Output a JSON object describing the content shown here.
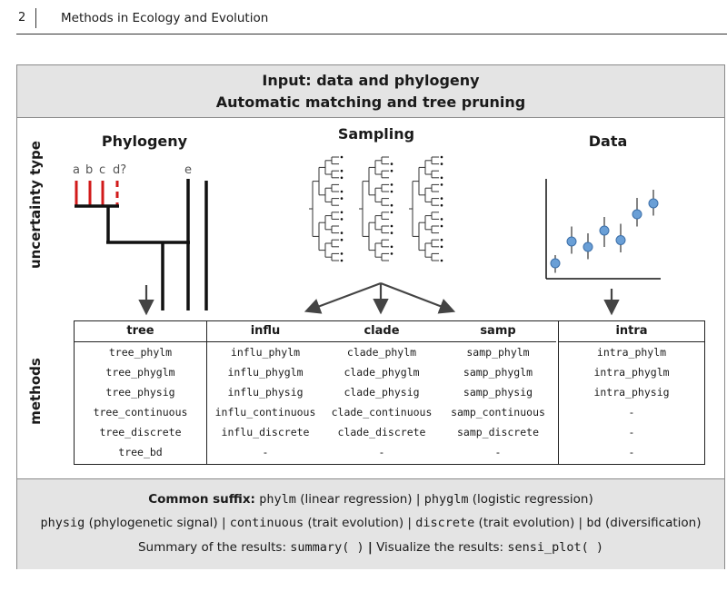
{
  "page_header": {
    "page_number": "2",
    "journal": "Methods in Ecology and Evolution"
  },
  "top_band": {
    "line1": "Input: data and phylogeny",
    "line2": "Automatic matching and tree pruning"
  },
  "side_labels": {
    "uncertainty": "uncertainty type",
    "methods": "methods"
  },
  "panels": {
    "phylogeny": {
      "title": "Phylogeny",
      "tip_labels": [
        "a",
        "b",
        "c",
        "d?",
        "e"
      ]
    },
    "sampling": {
      "title": "Sampling"
    },
    "data": {
      "title": "Data"
    }
  },
  "table": {
    "columns": [
      {
        "header": "tree",
        "cells": [
          "tree_phylm",
          "tree_phyglm",
          "tree_physig",
          "tree_continuous",
          "tree_discrete",
          "tree_bd"
        ]
      },
      {
        "header": "influ",
        "cells": [
          "influ_phylm",
          "influ_phyglm",
          "influ_physig",
          "influ_continuous",
          "influ_discrete",
          "-"
        ]
      },
      {
        "header": "clade",
        "cells": [
          "clade_phylm",
          "clade_phyglm",
          "clade_physig",
          "clade_continuous",
          "clade_discrete",
          "-"
        ]
      },
      {
        "header": "samp",
        "cells": [
          "samp_phylm",
          "samp_phyglm",
          "samp_physig",
          "samp_continuous",
          "samp_discrete",
          "-"
        ]
      },
      {
        "header": "intra",
        "cells": [
          "intra_phylm",
          "intra_phyglm",
          "intra_physig",
          "-",
          "-",
          "-"
        ]
      }
    ]
  },
  "bottom_band": {
    "common_suffix_label": "Common suffix:",
    "phylm": "phylm",
    "phylm_desc": "(linear regression) |",
    "phyglm": "phyglm",
    "phyglm_desc": "(logistic regression)",
    "physig": "physig",
    "physig_desc": "(phylogenetic signal) |",
    "continuous": "continuous",
    "continuous_desc": "(trait evolution) |",
    "discrete": "discrete",
    "discrete_desc": "(trait evolution) |",
    "bd": "bd",
    "bd_desc": "(diversification)",
    "summary_text": "Summary of the results:",
    "summary_fn": "summary( )",
    "separator": "|",
    "visualize_text": "Visualize the results:",
    "visualize_fn": "sensi_plot( )"
  },
  "colors": {
    "band": "#e4e4e4",
    "red_branch": "#d11a1a",
    "point_fill": "#6a9fd6",
    "point_stroke": "#3c6fa8"
  },
  "data_points": [
    {
      "x": 1,
      "y": 1.0,
      "lo": 0.3,
      "hi": 1.6
    },
    {
      "x": 2,
      "y": 2.6,
      "lo": 1.7,
      "hi": 3.7
    },
    {
      "x": 3,
      "y": 2.2,
      "lo": 1.3,
      "hi": 3.2
    },
    {
      "x": 4,
      "y": 3.4,
      "lo": 2.2,
      "hi": 4.4
    },
    {
      "x": 5,
      "y": 2.7,
      "lo": 1.8,
      "hi": 3.9
    },
    {
      "x": 6,
      "y": 4.6,
      "lo": 3.7,
      "hi": 5.8
    },
    {
      "x": 7,
      "y": 5.4,
      "lo": 4.5,
      "hi": 6.4
    }
  ]
}
